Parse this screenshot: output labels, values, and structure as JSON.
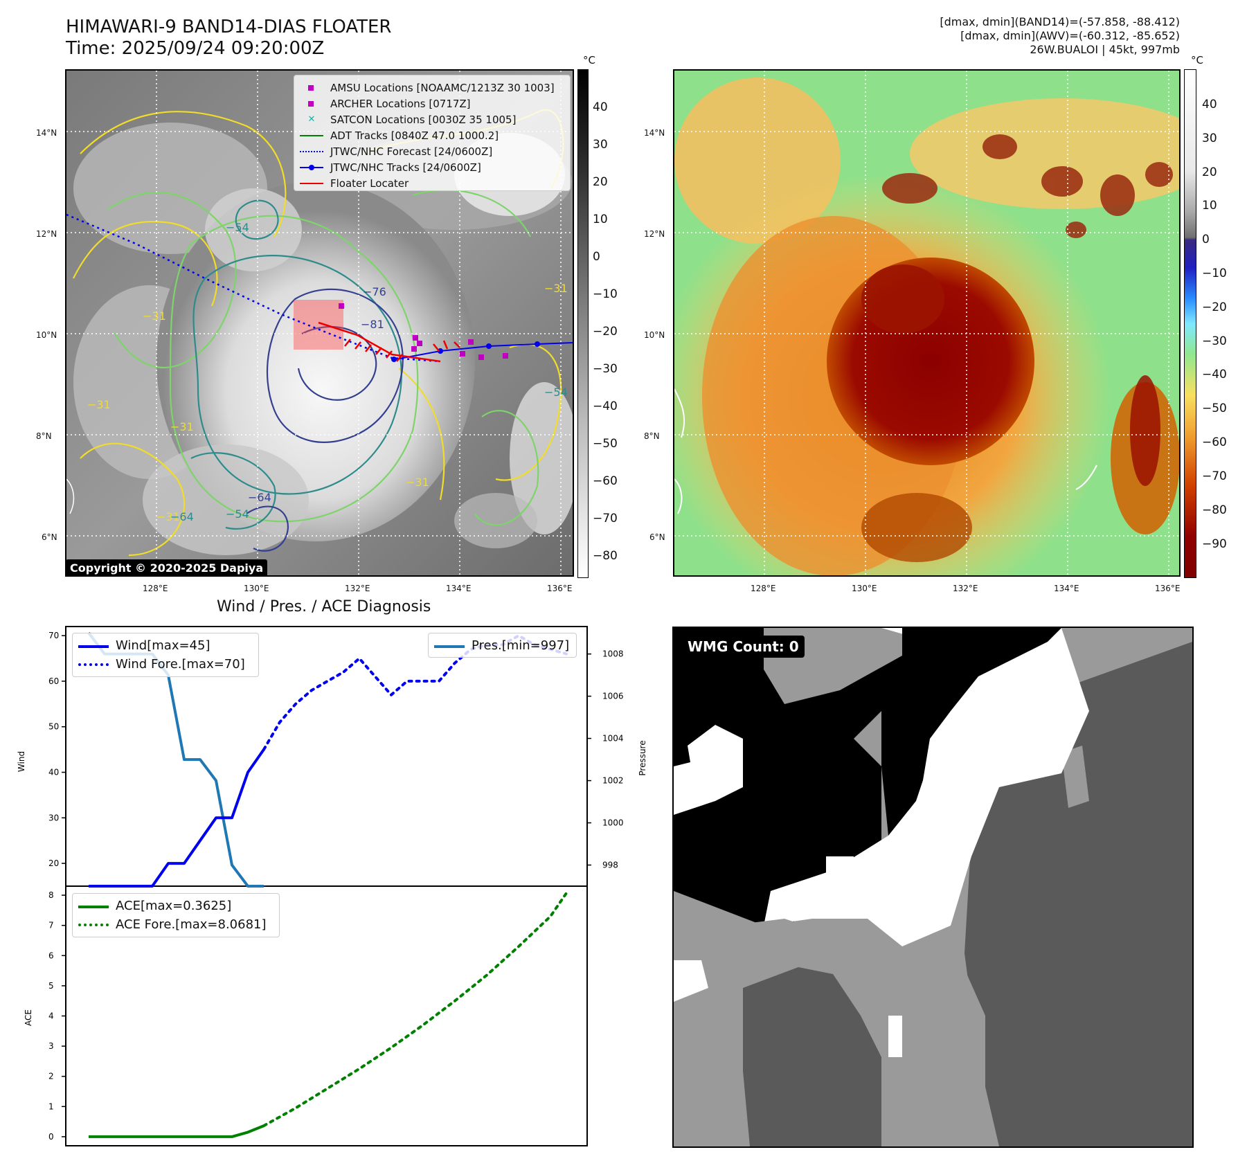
{
  "header": {
    "title_line1": "HIMAWARI-9 BAND14-DIAS FLOATER",
    "title_line2": "Time: 2025/09/24 09:20:00Z",
    "info_line1": "[dmax, dmin](BAND14)=(-57.858, -88.412)",
    "info_line2": "[dmax, dmin](AWV)=(-60.312, -85.652)",
    "info_line3": "26W.BUALOI | 45kt, 997mb"
  },
  "map_axes": {
    "lon_ticks": [
      "128°E",
      "130°E",
      "132°E",
      "134°E",
      "136°E"
    ],
    "lat_ticks": [
      "14°N",
      "12°N",
      "10°N",
      "8°N",
      "6°N"
    ],
    "lon_range": [
      126.2,
      136.2
    ],
    "lat_range": [
      5.2,
      15.2
    ]
  },
  "left_map": {
    "colorbar_unit": "°C",
    "colorbar_ticks": [
      "40",
      "30",
      "20",
      "10",
      "0",
      "−10",
      "−20",
      "−30",
      "−40",
      "−50",
      "−60",
      "−70",
      "−80"
    ],
    "contour_labels": [
      "−31",
      "−31",
      "−31",
      "−31",
      "−54",
      "−54",
      "−64",
      "−76",
      "−81",
      "−31",
      "−31",
      "−64",
      "−54"
    ],
    "legend": [
      {
        "label": "AMSU Locations [NOAAMC/1213Z 30 1003]",
        "symbol": "square",
        "color": "#c000c0"
      },
      {
        "label": "ARCHER Locations [0717Z]",
        "symbol": "square",
        "color": "#c000c0"
      },
      {
        "label": "SATCON Locations [0030Z 35 1005]",
        "symbol": "x",
        "color": "#17b3a8"
      },
      {
        "label": "ADT Tracks [0840Z 47.0 1000.2]",
        "symbol": "line",
        "color": "#008000"
      },
      {
        "label": "JTWC/NHC Forecast [24/0600Z]",
        "symbol": "dotted",
        "color": "#0000ee"
      },
      {
        "label": "JTWC/NHC Tracks [24/0600Z]",
        "symbol": "line-dot",
        "color": "#0000ee"
      },
      {
        "label": "Floater Locater",
        "symbol": "line",
        "color": "#ee0000"
      }
    ],
    "copyright": "Copyright © 2020-2025 Dapiya"
  },
  "right_map": {
    "colorbar_unit": "°C",
    "colorbar_ticks": [
      "40",
      "30",
      "20",
      "10",
      "0",
      "−10",
      "−20",
      "−30",
      "−40",
      "−50",
      "−60",
      "−70",
      "−80",
      "−90"
    ]
  },
  "diagnosis": {
    "title": "Wind / Pres. / ACE Diagnosis",
    "wind_ylabel": "Wind",
    "pres_ylabel": "Pressure",
    "ace_ylabel": "ACE",
    "wind_ticks": [
      "70",
      "60",
      "50",
      "40",
      "30",
      "20"
    ],
    "pres_ticks": [
      "1008",
      "1006",
      "1004",
      "1002",
      "1000",
      "998"
    ],
    "ace_ticks": [
      "8",
      "7",
      "6",
      "5",
      "4",
      "3",
      "2",
      "1",
      "0"
    ],
    "legend_wind": [
      "Wind[max=45]",
      "Wind Fore.[max=70]"
    ],
    "legend_pres": [
      "Pres.[min=997]"
    ],
    "legend_ace": [
      "ACE[max=0.3625]",
      "ACE Fore.[max=8.0681]"
    ]
  },
  "wmg": {
    "label": "WMG Count: 0"
  },
  "chart_data": [
    {
      "type": "line",
      "title": "Wind / Pres. / ACE Diagnosis",
      "ylabel": "Wind",
      "ylim": [
        15,
        72
      ],
      "x": [
        0,
        1,
        2,
        3,
        4,
        5,
        6,
        7,
        8,
        9,
        10,
        11
      ],
      "series": [
        {
          "name": "Wind[max=45]",
          "style": "solid",
          "color": "#0000ee",
          "values": [
            15,
            15,
            15,
            15,
            15,
            20,
            20,
            25,
            30,
            30,
            40,
            45
          ]
        },
        {
          "name": "Wind Fore.[max=70]",
          "style": "dotted",
          "color": "#0000ee",
          "x": [
            11,
            12,
            13,
            14,
            15,
            16,
            17,
            18,
            19,
            20,
            21,
            22,
            23,
            24,
            25,
            26,
            27,
            28,
            29,
            30
          ],
          "values": [
            45,
            51,
            55,
            58,
            60,
            62,
            65,
            61,
            57,
            60,
            60,
            60,
            64,
            67,
            68,
            68,
            70,
            68,
            67,
            66
          ]
        }
      ]
    },
    {
      "type": "line",
      "ylabel": "Pressure",
      "ylim": [
        997,
        1009.3
      ],
      "x": [
        0,
        1,
        2,
        3,
        4,
        5,
        6,
        7,
        8,
        9,
        10,
        11
      ],
      "series": [
        {
          "name": "Pres.[min=997]",
          "style": "solid",
          "color": "#1f77b4",
          "values": [
            1009,
            1008,
            1008,
            1008,
            1008,
            1007,
            1003,
            1003,
            1002,
            998,
            997,
            997
          ]
        }
      ]
    },
    {
      "type": "line",
      "ylabel": "ACE",
      "ylim": [
        -0.3,
        8.3
      ],
      "series": [
        {
          "name": "ACE[max=0.3625]",
          "style": "solid",
          "color": "#008000",
          "x": [
            0,
            1,
            2,
            3,
            4,
            5,
            6,
            7,
            8,
            9,
            10,
            11
          ],
          "values": [
            0,
            0,
            0,
            0,
            0,
            0,
            0,
            0,
            0,
            0,
            0.15,
            0.3625
          ]
        },
        {
          "name": "ACE Fore.[max=8.0681]",
          "style": "dotted",
          "color": "#008000",
          "x": [
            11,
            13,
            15,
            17,
            19,
            21,
            23,
            25,
            27,
            29,
            30
          ],
          "values": [
            0.3625,
            0.95,
            1.6,
            2.25,
            2.95,
            3.7,
            4.5,
            5.35,
            6.3,
            7.3,
            8.0681
          ]
        }
      ]
    }
  ]
}
